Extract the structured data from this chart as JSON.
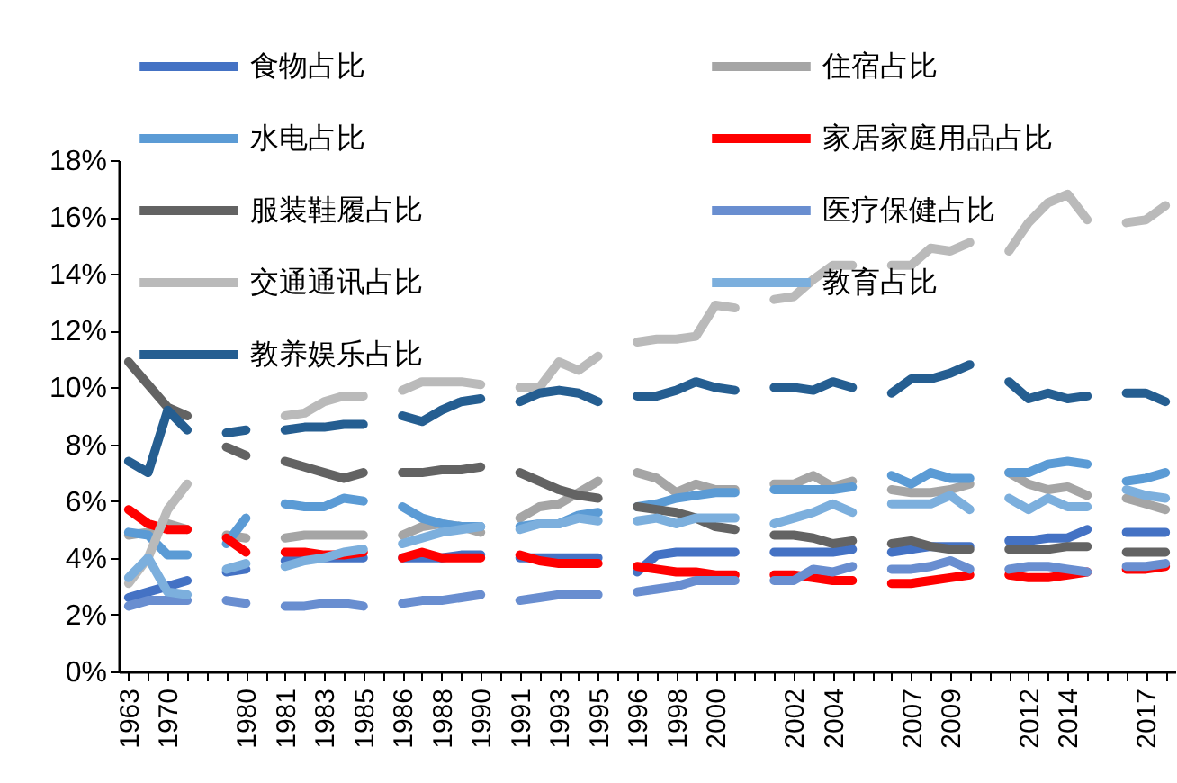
{
  "chart_data": {
    "type": "line",
    "categories": [
      "1963",
      null,
      "1970",
      null,
      null,
      null,
      "1980",
      null,
      "1981",
      null,
      "1983",
      null,
      "1985",
      null,
      "1986",
      null,
      "1988",
      null,
      "1990",
      null,
      "1991",
      null,
      "1993",
      null,
      "1995",
      null,
      "1996",
      null,
      "1998",
      null,
      "2000",
      null,
      null,
      null,
      "2002",
      null,
      "2004",
      null,
      null,
      null,
      "2007",
      null,
      "2009",
      null,
      null,
      null,
      "2012",
      null,
      "2014",
      null,
      null,
      null,
      "2017",
      null
    ],
    "series": [
      {
        "name": "食物占比",
        "color": "#4472c4",
        "values": [
          2.6,
          2.8,
          3.0,
          3.2,
          null,
          3.5,
          3.6,
          null,
          3.9,
          4.0,
          4.0,
          4.0,
          4.0,
          null,
          4.0,
          4.0,
          4.0,
          4.1,
          4.1,
          null,
          4.0,
          4.0,
          4.0,
          4.0,
          4.0,
          null,
          3.5,
          4.1,
          4.2,
          4.2,
          4.2,
          4.2,
          null,
          4.2,
          4.2,
          4.2,
          4.2,
          4.3,
          null,
          4.2,
          4.3,
          4.4,
          4.4,
          4.4,
          null,
          4.6,
          4.6,
          4.7,
          4.7,
          5.0,
          null,
          4.9,
          4.9,
          4.9
        ]
      },
      {
        "name": "住宿占比",
        "color": "#a5a5a5",
        "values": [
          4.8,
          4.9,
          5.2,
          5.0,
          null,
          4.8,
          4.7,
          null,
          4.7,
          4.8,
          4.8,
          4.8,
          4.8,
          null,
          4.8,
          5.1,
          5.2,
          5.1,
          4.9,
          null,
          5.4,
          5.8,
          5.9,
          6.3,
          6.7,
          null,
          7.0,
          6.8,
          6.3,
          6.6,
          6.4,
          6.4,
          null,
          6.6,
          6.6,
          6.9,
          6.5,
          6.7,
          null,
          6.4,
          6.3,
          6.3,
          6.4,
          6.6,
          null,
          7.0,
          6.6,
          6.4,
          6.5,
          6.2,
          null,
          6.1,
          5.9,
          5.7
        ]
      },
      {
        "name": "水电占比",
        "color": "#5b9bd5",
        "values": [
          4.9,
          4.8,
          4.1,
          4.1,
          null,
          4.5,
          5.4,
          null,
          5.9,
          5.8,
          5.8,
          6.1,
          6.0,
          null,
          5.8,
          5.4,
          5.2,
          5.1,
          5.1,
          null,
          5.1,
          5.2,
          5.2,
          5.5,
          5.6,
          null,
          5.8,
          5.9,
          6.1,
          6.2,
          6.3,
          6.3,
          null,
          6.4,
          6.4,
          6.4,
          6.4,
          6.5,
          null,
          6.9,
          6.6,
          7.0,
          6.8,
          6.8,
          null,
          7.0,
          7.0,
          7.3,
          7.4,
          7.3,
          null,
          6.7,
          6.8,
          7.0
        ]
      },
      {
        "name": "家居家庭用品占比",
        "color": "#ff0000",
        "values": [
          5.7,
          5.2,
          5.0,
          5.0,
          null,
          4.7,
          4.2,
          null,
          4.2,
          4.2,
          4.1,
          4.1,
          4.2,
          null,
          4.0,
          4.2,
          4.0,
          4.0,
          4.0,
          null,
          4.1,
          3.9,
          3.8,
          3.8,
          3.8,
          null,
          3.7,
          3.6,
          3.5,
          3.5,
          3.4,
          3.4,
          null,
          3.4,
          3.4,
          3.3,
          3.2,
          3.2,
          null,
          3.1,
          3.1,
          3.2,
          3.3,
          3.4,
          null,
          3.4,
          3.3,
          3.3,
          3.4,
          3.5,
          null,
          3.6,
          3.6,
          3.7
        ]
      },
      {
        "name": "服装鞋履占比",
        "color": "#636363",
        "values": [
          10.9,
          10.1,
          9.3,
          9.0,
          null,
          7.9,
          7.6,
          null,
          7.4,
          7.2,
          7.0,
          6.8,
          7.0,
          null,
          7.0,
          7.0,
          7.1,
          7.1,
          7.2,
          null,
          7.0,
          6.7,
          6.4,
          6.2,
          6.1,
          null,
          5.8,
          5.7,
          5.6,
          5.4,
          5.1,
          5.0,
          null,
          4.8,
          4.8,
          4.7,
          4.5,
          4.6,
          null,
          4.5,
          4.6,
          4.4,
          4.3,
          4.3,
          null,
          4.3,
          4.3,
          4.3,
          4.4,
          4.4,
          null,
          4.2,
          4.2,
          4.2
        ]
      },
      {
        "name": "医疗保健占比",
        "color": "#698ed0",
        "values": [
          2.3,
          2.5,
          2.5,
          2.5,
          null,
          2.5,
          2.4,
          null,
          2.3,
          2.3,
          2.4,
          2.4,
          2.3,
          null,
          2.4,
          2.5,
          2.5,
          2.6,
          2.7,
          null,
          2.5,
          2.6,
          2.7,
          2.7,
          2.7,
          null,
          2.8,
          2.9,
          3.0,
          3.2,
          3.2,
          3.2,
          null,
          3.2,
          3.2,
          3.6,
          3.5,
          3.7,
          null,
          3.6,
          3.6,
          3.7,
          3.9,
          3.6,
          null,
          3.6,
          3.7,
          3.7,
          3.6,
          3.5,
          null,
          3.7,
          3.7,
          3.8
        ]
      },
      {
        "name": "交通通讯占比",
        "color": "#bababa",
        "values": [
          3.1,
          4.0,
          5.7,
          6.6,
          null,
          null,
          null,
          null,
          9.0,
          9.1,
          9.5,
          9.7,
          9.7,
          null,
          9.9,
          10.2,
          10.2,
          10.2,
          10.1,
          null,
          10.0,
          10.0,
          10.9,
          10.6,
          11.1,
          null,
          11.6,
          11.7,
          11.7,
          11.8,
          12.9,
          12.8,
          null,
          13.1,
          13.2,
          13.8,
          14.3,
          14.3,
          null,
          14.3,
          14.3,
          14.9,
          14.8,
          15.1,
          null,
          14.8,
          15.8,
          16.5,
          16.8,
          15.9,
          null,
          15.8,
          15.9,
          16.4
        ]
      },
      {
        "name": "教育占比",
        "color": "#7cafdd",
        "values": [
          3.3,
          4.0,
          2.8,
          2.7,
          null,
          3.6,
          3.8,
          null,
          3.7,
          3.9,
          4.0,
          4.2,
          4.3,
          null,
          4.5,
          4.7,
          4.9,
          5.0,
          5.1,
          null,
          5.0,
          5.2,
          5.2,
          5.4,
          5.3,
          null,
          5.3,
          5.4,
          5.2,
          5.4,
          5.4,
          5.4,
          null,
          5.2,
          5.4,
          5.6,
          5.9,
          5.6,
          null,
          5.9,
          5.9,
          5.9,
          6.2,
          5.7,
          null,
          6.1,
          5.7,
          6.1,
          5.8,
          5.8,
          null,
          6.4,
          6.2,
          6.1
        ]
      },
      {
        "name": "教养娱乐占比",
        "color": "#255e91",
        "values": [
          7.4,
          7.0,
          9.2,
          8.5,
          null,
          8.4,
          8.5,
          null,
          8.5,
          8.6,
          8.6,
          8.7,
          8.7,
          null,
          9.0,
          8.8,
          9.2,
          9.5,
          9.6,
          null,
          9.5,
          9.8,
          9.9,
          9.8,
          9.5,
          null,
          9.7,
          9.7,
          9.9,
          10.2,
          10.0,
          9.9,
          null,
          10.0,
          10.0,
          9.9,
          10.2,
          10.0,
          null,
          9.8,
          10.3,
          10.3,
          10.5,
          10.8,
          null,
          10.2,
          9.6,
          9.8,
          9.6,
          9.7,
          null,
          9.8,
          9.8,
          9.5
        ]
      }
    ],
    "ylim": [
      0,
      18
    ],
    "yticks": [
      {
        "value": 0,
        "label": "0%"
      },
      {
        "value": 2,
        "label": "2%"
      },
      {
        "value": 4,
        "label": "4%"
      },
      {
        "value": 6,
        "label": "6%"
      },
      {
        "value": 8,
        "label": "8%"
      },
      {
        "value": 10,
        "label": "10%"
      },
      {
        "value": 12,
        "label": "12%"
      },
      {
        "value": 14,
        "label": "14%"
      },
      {
        "value": 16,
        "label": "16%"
      },
      {
        "value": 18,
        "label": "18%"
      }
    ],
    "grid": false,
    "legend": "top left",
    "marker": "none",
    "line_style": "solid"
  }
}
